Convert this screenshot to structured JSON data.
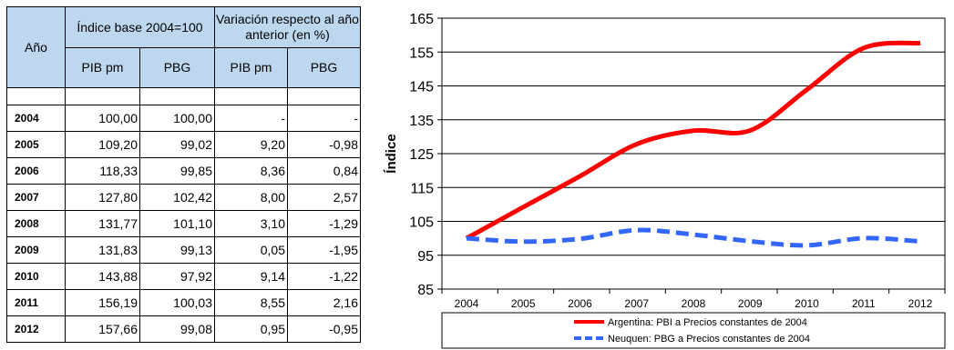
{
  "table": {
    "header": {
      "year": "Año",
      "group_index": "Índice base 2004=100",
      "group_variation": "Variación respecto al año anterior (en %)",
      "sub": [
        "PIB pm",
        "PBG",
        "PIB pm",
        "PBG"
      ]
    },
    "rows": [
      [
        "2004",
        "100,00",
        "100,00",
        "-",
        "-"
      ],
      [
        "2005",
        "109,20",
        "99,02",
        "9,20",
        "-0,98"
      ],
      [
        "2006",
        "118,33",
        "99,85",
        "8,36",
        "0,84"
      ],
      [
        "2007",
        "127,80",
        "102,42",
        "8,00",
        "2,57"
      ],
      [
        "2008",
        "131,77",
        "101,10",
        "3,10",
        "-1,29"
      ],
      [
        "2009",
        "131,83",
        "99,13",
        "0,05",
        "-1,95"
      ],
      [
        "2010",
        "143,88",
        "97,92",
        "9,14",
        "-1,22"
      ],
      [
        "2011",
        "156,19",
        "100,03",
        "8,55",
        "2,16"
      ],
      [
        "2012",
        "157,66",
        "99,08",
        "0,95",
        "-0,95"
      ]
    ]
  },
  "chart_data": {
    "type": "line",
    "title": "",
    "xlabel": "",
    "ylabel": "Índice",
    "x": [
      "2004",
      "2005",
      "2006",
      "2007",
      "2008",
      "2009",
      "2010",
      "2011",
      "2012"
    ],
    "ylim": [
      85,
      165
    ],
    "yticks": [
      85,
      95,
      105,
      115,
      125,
      135,
      145,
      155,
      165
    ],
    "grid": true,
    "legend_position": "bottom",
    "series": [
      {
        "name": "Argentina: PBI a Precios constantes de 2004",
        "values": [
          100.0,
          109.2,
          118.33,
          127.8,
          131.77,
          131.83,
          143.88,
          156.19,
          157.66
        ],
        "color": "#ff0000",
        "style": "solid"
      },
      {
        "name": "Neuquen: PBG a Precios constantes de 2004",
        "values": [
          100.0,
          99.02,
          99.85,
          102.42,
          101.1,
          99.13,
          97.92,
          100.03,
          99.08
        ],
        "color": "#3366ff",
        "style": "dashed"
      }
    ]
  }
}
